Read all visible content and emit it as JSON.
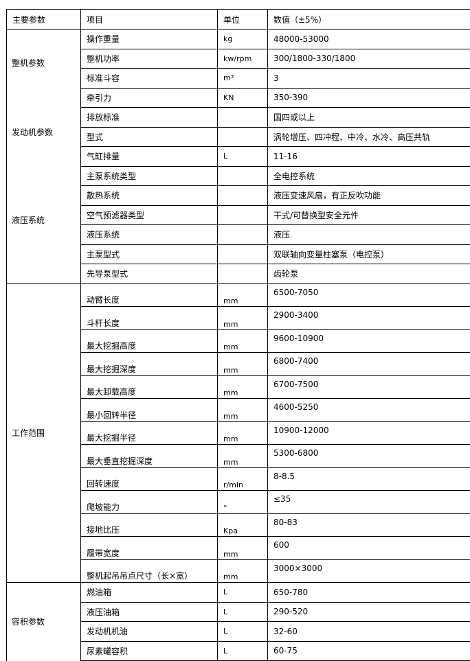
{
  "header": {
    "category": "主要参数",
    "item": "项目",
    "unit": "单位",
    "value": "数值（±5%）"
  },
  "groups": [
    {
      "labels": [
        "整机参数",
        "发动机参数",
        "液压系统"
      ],
      "rows": [
        {
          "item": "操作重量",
          "unit": "kg",
          "value": "48000-53000"
        },
        {
          "item": "整机功率",
          "unit": "kw/rpm",
          "value": "300/1800-330/1800"
        },
        {
          "item": "标准斗容",
          "unit": "m³",
          "value": "3"
        },
        {
          "item": "牵引力",
          "unit": "KN",
          "value": "350-390"
        },
        {
          "item": "排放标准",
          "unit": "",
          "value": "国四或以上"
        },
        {
          "item": "型式",
          "unit": "",
          "value": "涡轮增压、四冲程、中冷、水冷、高压共轨"
        },
        {
          "item": "气缸排量",
          "unit": "L",
          "value": "11-16"
        },
        {
          "item": "主泵系统类型",
          "unit": "",
          "value": "全电控系统"
        },
        {
          "item": "散热系统",
          "unit": "",
          "value": "液压变速风扇，有正反吹功能"
        },
        {
          "item": "空气预滤器类型",
          "unit": "",
          "value": "干式/可替换型安全元件"
        },
        {
          "item": "液压系统",
          "unit": "",
          "value": "液压"
        },
        {
          "item": "主泵型式",
          "unit": "",
          "value": "双联轴向变量柱塞泵（电控泵）"
        },
        {
          "item": "先导泵型式",
          "unit": "",
          "value": "齿轮泵"
        }
      ]
    },
    {
      "labels": [
        "工作范围"
      ],
      "rows": [
        {
          "item": "动臂长度",
          "unit": "mm",
          "value": "6500-7050"
        },
        {
          "item": "斗杆长度",
          "unit": "mm",
          "value": "2900-3400"
        },
        {
          "item": "最大挖掘高度",
          "unit": "mm",
          "value": "9600-10900"
        },
        {
          "item": "最大挖掘深度",
          "unit": "mm",
          "value": "6800-7400"
        },
        {
          "item": "最大卸载高度",
          "unit": "mm",
          "value": "6700-7500"
        },
        {
          "item": "最小回转半径",
          "unit": "mm",
          "value": "4600-5250"
        },
        {
          "item": "最大挖掘半径",
          "unit": "mm",
          "value": "10900-12000"
        },
        {
          "item": "最大垂直挖掘深度",
          "unit": "mm",
          "value": "5300-6800"
        },
        {
          "item": "回转速度",
          "unit": "r/min",
          "value": "8-8.5"
        },
        {
          "item": "爬坡能力",
          "unit": "°",
          "value": "≤35"
        },
        {
          "item": "接地比压",
          "unit": "Kpa",
          "value": "80-83"
        },
        {
          "item": "履带宽度",
          "unit": "mm",
          "value": "600"
        },
        {
          "item": "整机起吊吊点尺寸（长×宽）",
          "unit": "mm",
          "value": "3000×3000"
        }
      ]
    },
    {
      "labels": [
        "容积参数"
      ],
      "rows": [
        {
          "item": "燃油箱",
          "unit": "L",
          "value": "650-780"
        },
        {
          "item": "液压油箱",
          "unit": "L",
          "value": "290-520"
        },
        {
          "item": "发动机机油",
          "unit": "L",
          "value": "32-60"
        },
        {
          "item": "尿素罐容积",
          "unit": "L",
          "value": "60-75"
        }
      ]
    }
  ]
}
